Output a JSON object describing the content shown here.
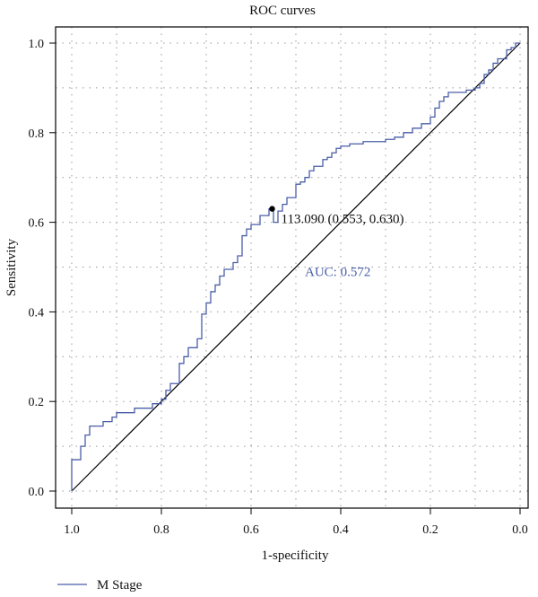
{
  "chart_data": {
    "type": "line",
    "title": "ROC curves",
    "xlabel": "1-specificity",
    "ylabel": "Sensitivity",
    "x_reversed": true,
    "xlim": [
      1.0,
      0.0
    ],
    "ylim": [
      0.0,
      1.0
    ],
    "x_ticks": [
      {
        "value": 1.0,
        "label": "1.0"
      },
      {
        "value": 0.8,
        "label": "0.8"
      },
      {
        "value": 0.6,
        "label": "0.6"
      },
      {
        "value": 0.4,
        "label": "0.4"
      },
      {
        "value": 0.2,
        "label": "0.2"
      },
      {
        "value": 0.0,
        "label": "0.0"
      }
    ],
    "y_ticks": [
      {
        "value": 0.0,
        "label": "0.0"
      },
      {
        "value": 0.2,
        "label": "0.2"
      },
      {
        "value": 0.4,
        "label": "0.4"
      },
      {
        "value": 0.6,
        "label": "0.6"
      },
      {
        "value": 0.8,
        "label": "0.8"
      },
      {
        "value": 1.0,
        "label": "1.0"
      }
    ],
    "grid": true,
    "legend_position": "bottom-left",
    "series": [
      {
        "name": "M Stage",
        "color": "#4a5ea8",
        "points": [
          [
            1.0,
            0.0
          ],
          [
            1.0,
            0.07
          ],
          [
            0.98,
            0.07
          ],
          [
            0.98,
            0.1
          ],
          [
            0.97,
            0.1
          ],
          [
            0.97,
            0.125
          ],
          [
            0.96,
            0.125
          ],
          [
            0.96,
            0.145
          ],
          [
            0.93,
            0.145
          ],
          [
            0.93,
            0.155
          ],
          [
            0.91,
            0.155
          ],
          [
            0.91,
            0.165
          ],
          [
            0.9,
            0.165
          ],
          [
            0.9,
            0.175
          ],
          [
            0.86,
            0.175
          ],
          [
            0.86,
            0.185
          ],
          [
            0.82,
            0.185
          ],
          [
            0.82,
            0.195
          ],
          [
            0.8,
            0.195
          ],
          [
            0.8,
            0.205
          ],
          [
            0.79,
            0.205
          ],
          [
            0.79,
            0.225
          ],
          [
            0.78,
            0.225
          ],
          [
            0.78,
            0.24
          ],
          [
            0.76,
            0.24
          ],
          [
            0.76,
            0.285
          ],
          [
            0.75,
            0.285
          ],
          [
            0.75,
            0.3
          ],
          [
            0.74,
            0.3
          ],
          [
            0.74,
            0.32
          ],
          [
            0.72,
            0.32
          ],
          [
            0.72,
            0.34
          ],
          [
            0.71,
            0.34
          ],
          [
            0.71,
            0.395
          ],
          [
            0.7,
            0.395
          ],
          [
            0.7,
            0.42
          ],
          [
            0.69,
            0.42
          ],
          [
            0.69,
            0.445
          ],
          [
            0.68,
            0.445
          ],
          [
            0.68,
            0.46
          ],
          [
            0.67,
            0.46
          ],
          [
            0.67,
            0.48
          ],
          [
            0.66,
            0.48
          ],
          [
            0.66,
            0.495
          ],
          [
            0.64,
            0.495
          ],
          [
            0.64,
            0.51
          ],
          [
            0.63,
            0.51
          ],
          [
            0.63,
            0.525
          ],
          [
            0.62,
            0.525
          ],
          [
            0.62,
            0.57
          ],
          [
            0.61,
            0.57
          ],
          [
            0.61,
            0.585
          ],
          [
            0.6,
            0.585
          ],
          [
            0.6,
            0.595
          ],
          [
            0.58,
            0.595
          ],
          [
            0.58,
            0.615
          ],
          [
            0.56,
            0.615
          ],
          [
            0.56,
            0.63
          ],
          [
            0.55,
            0.63
          ],
          [
            0.55,
            0.6
          ],
          [
            0.54,
            0.6
          ],
          [
            0.54,
            0.625
          ],
          [
            0.53,
            0.625
          ],
          [
            0.53,
            0.64
          ],
          [
            0.52,
            0.64
          ],
          [
            0.52,
            0.655
          ],
          [
            0.5,
            0.655
          ],
          [
            0.5,
            0.685
          ],
          [
            0.49,
            0.685
          ],
          [
            0.49,
            0.69
          ],
          [
            0.48,
            0.69
          ],
          [
            0.48,
            0.7
          ],
          [
            0.47,
            0.7
          ],
          [
            0.47,
            0.715
          ],
          [
            0.46,
            0.715
          ],
          [
            0.46,
            0.725
          ],
          [
            0.44,
            0.725
          ],
          [
            0.44,
            0.74
          ],
          [
            0.43,
            0.74
          ],
          [
            0.43,
            0.745
          ],
          [
            0.42,
            0.745
          ],
          [
            0.42,
            0.755
          ],
          [
            0.41,
            0.755
          ],
          [
            0.41,
            0.765
          ],
          [
            0.4,
            0.765
          ],
          [
            0.4,
            0.77
          ],
          [
            0.38,
            0.77
          ],
          [
            0.38,
            0.775
          ],
          [
            0.35,
            0.775
          ],
          [
            0.35,
            0.78
          ],
          [
            0.3,
            0.78
          ],
          [
            0.3,
            0.785
          ],
          [
            0.28,
            0.785
          ],
          [
            0.28,
            0.79
          ],
          [
            0.26,
            0.79
          ],
          [
            0.26,
            0.8
          ],
          [
            0.24,
            0.8
          ],
          [
            0.24,
            0.81
          ],
          [
            0.22,
            0.81
          ],
          [
            0.22,
            0.82
          ],
          [
            0.2,
            0.82
          ],
          [
            0.2,
            0.835
          ],
          [
            0.19,
            0.835
          ],
          [
            0.19,
            0.855
          ],
          [
            0.18,
            0.855
          ],
          [
            0.18,
            0.87
          ],
          [
            0.17,
            0.87
          ],
          [
            0.17,
            0.88
          ],
          [
            0.16,
            0.88
          ],
          [
            0.16,
            0.89
          ],
          [
            0.12,
            0.89
          ],
          [
            0.12,
            0.895
          ],
          [
            0.1,
            0.895
          ],
          [
            0.1,
            0.9
          ],
          [
            0.09,
            0.9
          ],
          [
            0.09,
            0.91
          ],
          [
            0.08,
            0.91
          ],
          [
            0.08,
            0.93
          ],
          [
            0.07,
            0.93
          ],
          [
            0.07,
            0.94
          ],
          [
            0.06,
            0.94
          ],
          [
            0.06,
            0.955
          ],
          [
            0.05,
            0.955
          ],
          [
            0.05,
            0.965
          ],
          [
            0.03,
            0.965
          ],
          [
            0.03,
            0.985
          ],
          [
            0.02,
            0.985
          ],
          [
            0.02,
            0.99
          ],
          [
            0.01,
            0.99
          ],
          [
            0.01,
            1.0
          ],
          [
            0.0,
            1.0
          ]
        ]
      }
    ],
    "reference_line": {
      "from": [
        1.0,
        0.0
      ],
      "to": [
        0.0,
        1.0
      ],
      "color": "#000000"
    },
    "annotations": {
      "threshold_point": {
        "x": 0.553,
        "y": 0.63,
        "text": "113.090 (0.553, 0.630)"
      },
      "auc": {
        "text": "AUC: 0.572",
        "color": "#4a5ea8",
        "anchor_x": 0.48,
        "anchor_y": 0.49
      }
    }
  }
}
